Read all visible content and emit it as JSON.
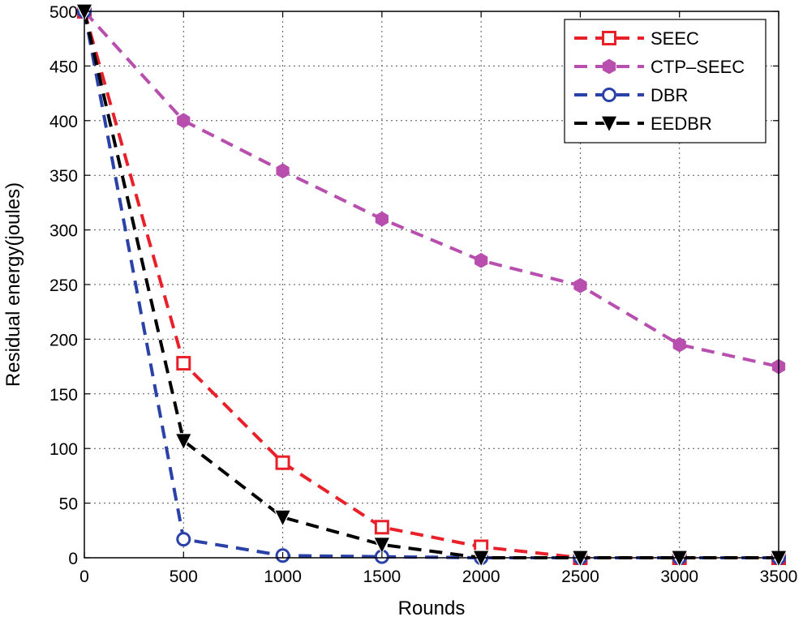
{
  "chart_data": {
    "type": "line",
    "title": "",
    "xlabel": "Rounds",
    "ylabel": "Residual energy(joules)",
    "xlim": [
      0,
      3500
    ],
    "ylim": [
      0,
      500
    ],
    "xticks": [
      0,
      500,
      1000,
      1500,
      2000,
      2500,
      3000,
      3500
    ],
    "yticks": [
      0,
      50,
      100,
      150,
      200,
      250,
      300,
      350,
      400,
      450,
      500
    ],
    "grid": true,
    "legend_position": "top-right",
    "x": [
      0,
      500,
      1000,
      1500,
      2000,
      2500,
      3000,
      3500
    ],
    "series": [
      {
        "name": "SEEC",
        "color": "#e8202a",
        "marker": "square",
        "values": [
          500,
          178,
          87,
          28,
          10,
          0,
          0,
          0
        ]
      },
      {
        "name": "CTP–SEEC",
        "color": "#b84fae",
        "marker": "hexagon",
        "values": [
          500,
          400,
          354,
          310,
          272,
          249,
          195,
          175
        ]
      },
      {
        "name": "DBR",
        "color": "#2a41a8",
        "marker": "circle",
        "values": [
          500,
          17,
          2,
          1,
          0,
          0,
          0,
          0
        ]
      },
      {
        "name": "EEDBR",
        "color": "#000000",
        "marker": "triangle-down",
        "values": [
          500,
          107,
          37,
          12,
          0,
          0,
          0,
          0
        ]
      }
    ]
  }
}
